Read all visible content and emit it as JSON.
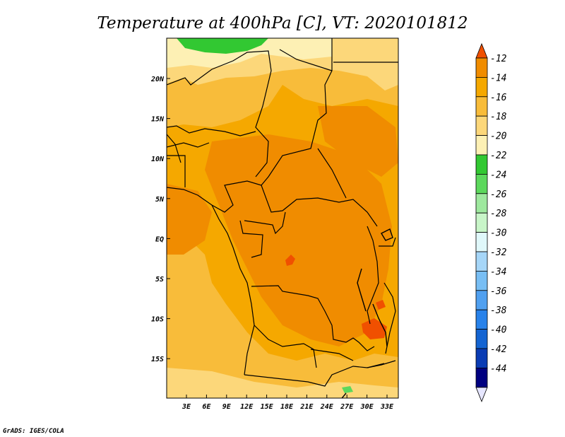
{
  "title": "Temperature at 400hPa [C], VT: 2020101812",
  "credit": "GrADS: IGES/COLA",
  "map": {
    "lon_labels": [
      "3E",
      "6E",
      "9E",
      "12E",
      "15E",
      "18E",
      "21E",
      "24E",
      "27E",
      "30E",
      "33E"
    ],
    "lat_labels": [
      "20N",
      "15N",
      "10N",
      "5N",
      "EQ",
      "5S",
      "10S",
      "15S"
    ]
  },
  "colorbar": {
    "levels": [
      "-12",
      "-14",
      "-16",
      "-18",
      "-20",
      "-22",
      "-24",
      "-26",
      "-28",
      "-30",
      "-32",
      "-34",
      "-36",
      "-38",
      "-40",
      "-42",
      "-44"
    ],
    "colors": [
      "#f05000",
      "#f08c00",
      "#f5a800",
      "#f8bc3a",
      "#fcd77a",
      "#fdf0b4",
      "#32c832",
      "#5cd85c",
      "#9ee89e",
      "#c8f5c8",
      "#e0f8fa",
      "#a6d6f8",
      "#78bef4",
      "#50a0f0",
      "#2882ea",
      "#1464d2",
      "#0a3cb4",
      "#000080",
      "#e6e6ff"
    ]
  }
}
